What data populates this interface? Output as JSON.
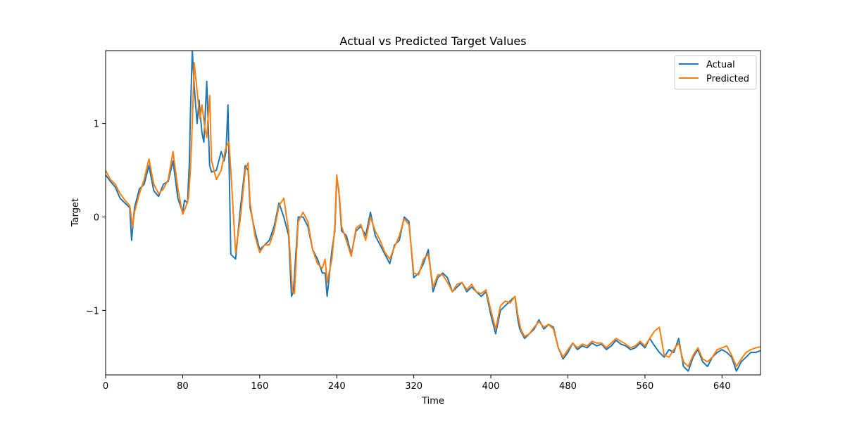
{
  "chart_data": {
    "type": "line",
    "title": "Actual vs Predicted Target Values",
    "xlabel": "Time",
    "ylabel": "Target",
    "xlim": [
      0,
      680
    ],
    "ylim": [
      -1.69,
      1.78
    ],
    "x_ticks": [
      0,
      80,
      160,
      240,
      320,
      400,
      480,
      560,
      640
    ],
    "x_tick_labels": [
      "0",
      "80",
      "160",
      "240",
      "320",
      "400",
      "480",
      "560",
      "640"
    ],
    "y_ticks": [
      1,
      0,
      -1
    ],
    "y_tick_labels": [
      "1",
      "0",
      "−1"
    ],
    "legend_position": "top-right",
    "grid": false,
    "series": [
      {
        "name": "Actual",
        "color": "#1f77b4",
        "x": [
          0,
          5,
          10,
          15,
          20,
          25,
          27,
          30,
          35,
          40,
          45,
          50,
          55,
          60,
          65,
          70,
          75,
          80,
          82,
          85,
          87,
          88,
          90,
          92,
          95,
          97,
          100,
          102,
          105,
          108,
          110,
          115,
          120,
          123,
          125,
          127,
          130,
          135,
          140,
          145,
          148,
          150,
          155,
          160,
          165,
          170,
          175,
          180,
          185,
          190,
          193,
          195,
          200,
          205,
          210,
          215,
          220,
          225,
          228,
          230,
          235,
          238,
          240,
          242,
          245,
          250,
          255,
          260,
          265,
          270,
          275,
          280,
          285,
          290,
          295,
          300,
          305,
          310,
          315,
          320,
          325,
          330,
          335,
          340,
          345,
          350,
          355,
          360,
          365,
          370,
          375,
          380,
          385,
          390,
          395,
          400,
          405,
          410,
          415,
          420,
          425,
          428,
          430,
          435,
          440,
          445,
          450,
          455,
          460,
          465,
          470,
          475,
          480,
          485,
          490,
          495,
          500,
          505,
          510,
          515,
          520,
          525,
          530,
          535,
          540,
          545,
          550,
          555,
          560,
          565,
          570,
          575,
          580,
          585,
          590,
          595,
          600,
          605,
          610,
          615,
          620,
          625,
          630,
          635,
          640,
          645,
          650,
          655,
          660,
          665,
          670,
          675,
          680
        ],
        "values": [
          0.45,
          0.38,
          0.32,
          0.2,
          0.15,
          0.1,
          -0.25,
          0.1,
          0.3,
          0.35,
          0.55,
          0.28,
          0.22,
          0.35,
          0.38,
          0.6,
          0.2,
          0.05,
          0.18,
          0.15,
          0.6,
          1.1,
          1.78,
          1.4,
          1.0,
          1.25,
          0.9,
          0.8,
          1.45,
          0.55,
          0.48,
          0.5,
          0.7,
          0.6,
          0.7,
          1.2,
          -0.4,
          -0.45,
          0.1,
          0.55,
          0.5,
          0.1,
          -0.15,
          -0.35,
          -0.3,
          -0.25,
          -0.1,
          0.15,
          0.0,
          -0.2,
          -0.85,
          -0.8,
          0.0,
          0.0,
          -0.1,
          -0.35,
          -0.45,
          -0.6,
          -0.6,
          -0.85,
          -0.35,
          -0.15,
          0.4,
          0.3,
          -0.15,
          -0.2,
          -0.4,
          -0.15,
          -0.1,
          -0.2,
          0.05,
          -0.2,
          -0.3,
          -0.4,
          -0.5,
          -0.3,
          -0.25,
          0.0,
          -0.05,
          -0.65,
          -0.6,
          -0.5,
          -0.35,
          -0.8,
          -0.65,
          -0.6,
          -0.65,
          -0.8,
          -0.75,
          -0.7,
          -0.8,
          -0.75,
          -0.8,
          -0.85,
          -0.8,
          -1.05,
          -1.25,
          -1.0,
          -0.95,
          -0.9,
          -0.85,
          -1.1,
          -1.2,
          -1.3,
          -1.25,
          -1.2,
          -1.1,
          -1.2,
          -1.15,
          -1.18,
          -1.4,
          -1.52,
          -1.45,
          -1.35,
          -1.42,
          -1.38,
          -1.4,
          -1.35,
          -1.38,
          -1.36,
          -1.42,
          -1.38,
          -1.32,
          -1.36,
          -1.38,
          -1.42,
          -1.4,
          -1.35,
          -1.4,
          -1.3,
          -1.38,
          -1.45,
          -1.5,
          -1.42,
          -1.45,
          -1.3,
          -1.6,
          -1.65,
          -1.5,
          -1.42,
          -1.55,
          -1.6,
          -1.5,
          -1.45,
          -1.42,
          -1.45,
          -1.5,
          -1.65,
          -1.55,
          -1.5,
          -1.45,
          -1.45,
          -1.43
        ]
      },
      {
        "name": "Predicted",
        "color": "#ff7f0e",
        "x": [
          0,
          5,
          10,
          15,
          20,
          25,
          28,
          30,
          35,
          40,
          45,
          50,
          55,
          60,
          65,
          70,
          75,
          80,
          83,
          86,
          88,
          90,
          92,
          95,
          98,
          100,
          103,
          105,
          108,
          110,
          115,
          120,
          123,
          125,
          128,
          130,
          135,
          140,
          145,
          148,
          150,
          155,
          160,
          165,
          170,
          175,
          180,
          185,
          190,
          194,
          196,
          200,
          205,
          210,
          215,
          220,
          225,
          228,
          230,
          235,
          238,
          240,
          243,
          245,
          250,
          255,
          260,
          265,
          270,
          275,
          280,
          285,
          290,
          295,
          300,
          305,
          310,
          315,
          320,
          325,
          330,
          335,
          340,
          345,
          350,
          355,
          360,
          365,
          370,
          375,
          380,
          385,
          390,
          395,
          400,
          405,
          410,
          415,
          420,
          425,
          428,
          431,
          435,
          440,
          445,
          450,
          455,
          460,
          465,
          470,
          475,
          480,
          485,
          490,
          495,
          500,
          505,
          510,
          515,
          520,
          525,
          530,
          535,
          540,
          545,
          550,
          555,
          560,
          565,
          570,
          575,
          580,
          585,
          590,
          595,
          600,
          605,
          610,
          615,
          620,
          625,
          630,
          635,
          640,
          645,
          650,
          655,
          660,
          665,
          670,
          675,
          680
        ],
        "values": [
          0.5,
          0.4,
          0.35,
          0.25,
          0.18,
          0.12,
          -0.1,
          0.05,
          0.25,
          0.4,
          0.62,
          0.35,
          0.25,
          0.3,
          0.4,
          0.7,
          0.3,
          0.03,
          0.1,
          0.2,
          0.5,
          1.0,
          1.65,
          1.35,
          1.05,
          1.2,
          0.95,
          0.85,
          1.3,
          0.6,
          0.4,
          0.5,
          0.65,
          0.75,
          0.8,
          0.5,
          -0.38,
          0.0,
          0.5,
          0.58,
          0.15,
          -0.2,
          -0.38,
          -0.3,
          -0.3,
          -0.15,
          0.12,
          0.2,
          -0.15,
          -0.8,
          -0.82,
          -0.05,
          0.05,
          -0.05,
          -0.35,
          -0.5,
          -0.55,
          -0.45,
          -0.7,
          -0.45,
          -0.1,
          0.45,
          0.2,
          -0.1,
          -0.25,
          -0.42,
          -0.12,
          -0.08,
          -0.25,
          0.0,
          -0.15,
          -0.25,
          -0.38,
          -0.45,
          -0.32,
          -0.2,
          -0.02,
          -0.08,
          -0.6,
          -0.62,
          -0.45,
          -0.4,
          -0.75,
          -0.62,
          -0.62,
          -0.7,
          -0.8,
          -0.72,
          -0.7,
          -0.78,
          -0.72,
          -0.8,
          -0.82,
          -0.78,
          -1.0,
          -1.2,
          -0.95,
          -0.9,
          -0.92,
          -0.85,
          -1.05,
          -1.2,
          -1.28,
          -1.25,
          -1.18,
          -1.12,
          -1.18,
          -1.15,
          -1.2,
          -1.4,
          -1.5,
          -1.42,
          -1.35,
          -1.4,
          -1.36,
          -1.38,
          -1.33,
          -1.35,
          -1.35,
          -1.4,
          -1.35,
          -1.3,
          -1.33,
          -1.36,
          -1.4,
          -1.38,
          -1.33,
          -1.38,
          -1.3,
          -1.22,
          -1.18,
          -1.48,
          -1.5,
          -1.42,
          -1.35,
          -1.55,
          -1.6,
          -1.48,
          -1.4,
          -1.52,
          -1.55,
          -1.5,
          -1.42,
          -1.4,
          -1.38,
          -1.48,
          -1.6,
          -1.52,
          -1.45,
          -1.42,
          -1.4,
          -1.39
        ]
      }
    ]
  }
}
